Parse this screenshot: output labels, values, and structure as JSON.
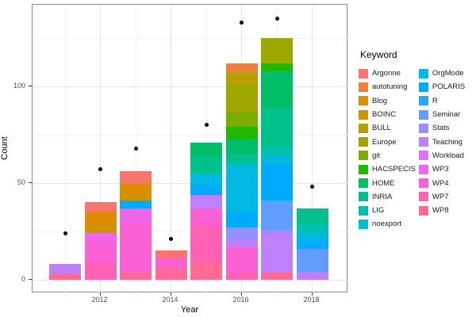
{
  "chart_data": {
    "type": "bar",
    "title": "",
    "xlabel": "Year",
    "ylabel": "Count",
    "legend_title": "Keyword",
    "legend_position": "right",
    "grid": true,
    "ylim": [
      0,
      142
    ],
    "y_ticks": [
      0,
      50,
      100
    ],
    "y_minor": [
      25,
      75,
      125
    ],
    "x_tick_years": [
      2012,
      2014,
      2016,
      2018
    ],
    "years": [
      2011,
      2012,
      2013,
      2014,
      2015,
      2016,
      2017,
      2018
    ],
    "keywords": [
      {
        "name": "Argonne",
        "color": "#F8766D"
      },
      {
        "name": "autotuning",
        "color": "#EC823C"
      },
      {
        "name": "Blog",
        "color": "#DE8C00"
      },
      {
        "name": "BOINC",
        "color": "#CD9600"
      },
      {
        "name": "BULL",
        "color": "#B79F00"
      },
      {
        "name": "Europe",
        "color": "#9CA700"
      },
      {
        "name": "git",
        "color": "#7CAE00"
      },
      {
        "name": "HACSPECIS",
        "color": "#24B700"
      },
      {
        "name": "HOME",
        "color": "#00BE67"
      },
      {
        "name": "INRIA",
        "color": "#00C08B"
      },
      {
        "name": "LIG",
        "color": "#00C0AF"
      },
      {
        "name": "noexport",
        "color": "#00BECE"
      },
      {
        "name": "OrgMode",
        "color": "#00B9E3"
      },
      {
        "name": "POLARIS",
        "color": "#00ABFD"
      },
      {
        "name": "R",
        "color": "#2FA2FF"
      },
      {
        "name": "Seminar",
        "color": "#619CFF"
      },
      {
        "name": "Stats",
        "color": "#9590FF"
      },
      {
        "name": "Teaching",
        "color": "#BF80FF"
      },
      {
        "name": "Workload",
        "color": "#DB72FB"
      },
      {
        "name": "WP3",
        "color": "#F066EA"
      },
      {
        "name": "WP4",
        "color": "#FB61D7"
      },
      {
        "name": "WP7",
        "color": "#FF61B5"
      },
      {
        "name": "WP8",
        "color": "#FF6B94"
      }
    ],
    "stacks_top_to_bottom": {
      "2011": [
        {
          "k": "Teaching",
          "v": 5
        },
        {
          "k": "WP8",
          "v": 3
        }
      ],
      "2012": [
        {
          "k": "Argonne",
          "v": 5
        },
        {
          "k": "Blog",
          "v": 7
        },
        {
          "k": "BOINC",
          "v": 4
        },
        {
          "k": "WP3",
          "v": 4
        },
        {
          "k": "WP4",
          "v": 11
        },
        {
          "k": "WP7",
          "v": 9
        }
      ],
      "2013": [
        {
          "k": "Argonne",
          "v": 6
        },
        {
          "k": "Blog",
          "v": 6
        },
        {
          "k": "BOINC",
          "v": 3
        },
        {
          "k": "POLARIS",
          "v": 4
        },
        {
          "k": "WP3",
          "v": 8
        },
        {
          "k": "WP4",
          "v": 25
        },
        {
          "k": "WP8",
          "v": 4
        }
      ],
      "2014": [
        {
          "k": "Argonne",
          "v": 4
        },
        {
          "k": "WP4",
          "v": 5
        },
        {
          "k": "WP8",
          "v": 6
        }
      ],
      "2015": [
        {
          "k": "HOME",
          "v": 7
        },
        {
          "k": "INRIA",
          "v": 9
        },
        {
          "k": "OrgMode",
          "v": 6
        },
        {
          "k": "POLARIS",
          "v": 5
        },
        {
          "k": "Teaching",
          "v": 7
        },
        {
          "k": "WP4",
          "v": 9
        },
        {
          "k": "WP7",
          "v": 19
        },
        {
          "k": "WP8",
          "v": 9
        }
      ],
      "2016": [
        {
          "k": "autotuning",
          "v": 5
        },
        {
          "k": "BULL",
          "v": 6
        },
        {
          "k": "Europe",
          "v": 14
        },
        {
          "k": "git",
          "v": 8
        },
        {
          "k": "HACSPECIS",
          "v": 6
        },
        {
          "k": "HOME",
          "v": 8
        },
        {
          "k": "INRIA",
          "v": 4
        },
        {
          "k": "LIG",
          "v": 2
        },
        {
          "k": "OrgMode",
          "v": 24
        },
        {
          "k": "POLARIS",
          "v": 8
        },
        {
          "k": "Stats",
          "v": 6
        },
        {
          "k": "Teaching",
          "v": 4
        },
        {
          "k": "WP4",
          "v": 13
        },
        {
          "k": "WP7",
          "v": 4
        }
      ],
      "2017": [
        {
          "k": "Europe",
          "v": 13
        },
        {
          "k": "HACSPECIS",
          "v": 4
        },
        {
          "k": "HOME",
          "v": 19
        },
        {
          "k": "INRIA",
          "v": 20
        },
        {
          "k": "LIG",
          "v": 5
        },
        {
          "k": "OrgMode",
          "v": 4
        },
        {
          "k": "POLARIS",
          "v": 19
        },
        {
          "k": "Seminar",
          "v": 15
        },
        {
          "k": "Stats",
          "v": 2
        },
        {
          "k": "Teaching",
          "v": 20
        },
        {
          "k": "WP8",
          "v": 4
        }
      ],
      "2018": [
        {
          "k": "INRIA",
          "v": 8
        },
        {
          "k": "LIG",
          "v": 5
        },
        {
          "k": "OrgMode",
          "v": 4
        },
        {
          "k": "POLARIS",
          "v": 4
        },
        {
          "k": "Seminar",
          "v": 12
        },
        {
          "k": "Teaching",
          "v": 4
        }
      ]
    },
    "points": {
      "description": "black dots above bars",
      "values": [
        24,
        57,
        68,
        21,
        80,
        133,
        135,
        48
      ]
    }
  }
}
